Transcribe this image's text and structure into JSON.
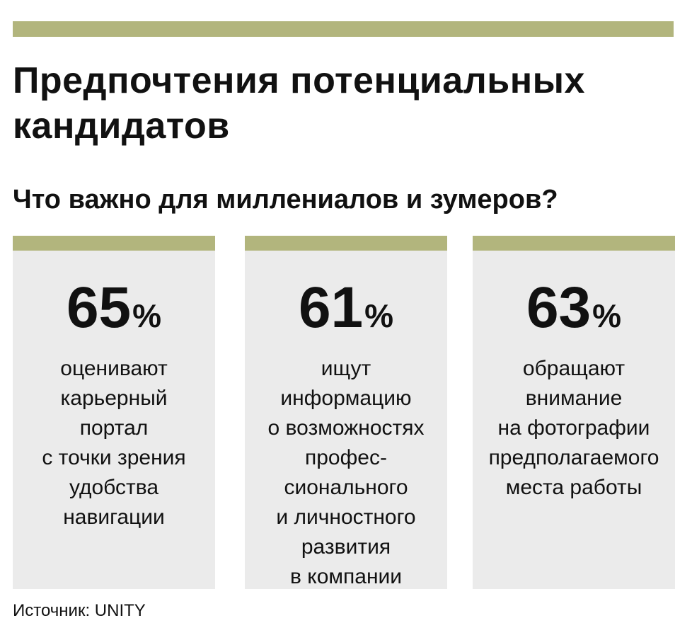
{
  "header": {
    "title": [
      "Предпочтения потенциальных",
      "кандидатов"
    ],
    "subtitle": "Что важно для миллениалов и зумеров?"
  },
  "cards": [
    {
      "value": 65,
      "unit": "%",
      "lines": [
        "оценивают",
        "карьерный",
        "портал",
        "с точки зрения",
        "удобства",
        "навигации"
      ]
    },
    {
      "value": 61,
      "unit": "%",
      "lines": [
        "ищут",
        "информацию",
        "о возможностях",
        "профес-",
        "сионального",
        "и личностного",
        "развития",
        "в компании"
      ]
    },
    {
      "value": 63,
      "unit": "%",
      "lines": [
        "обращают",
        "внимание",
        "на фотографии",
        "предполагаемого",
        "места работы"
      ]
    }
  ],
  "source": "Источник: UNITY"
}
